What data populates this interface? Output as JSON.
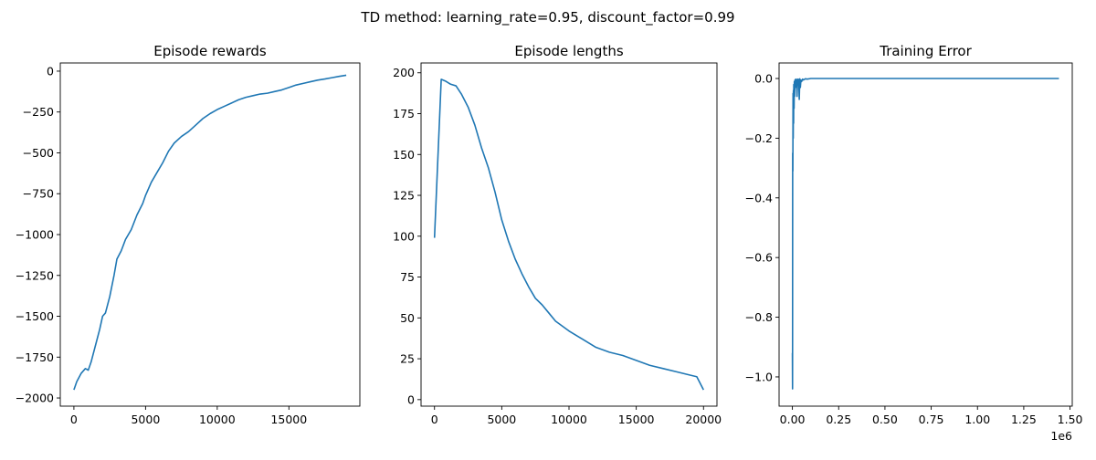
{
  "figure": {
    "suptitle": "TD method: learning_rate=0.95, discount_factor=0.99",
    "line_color": "#1f77b4"
  },
  "chart_data": [
    {
      "type": "line",
      "title": "Episode rewards",
      "xlabel": "",
      "ylabel": "",
      "xlim": [
        -950,
        19950
      ],
      "ylim": [
        -2050,
        50
      ],
      "xticks": [
        0,
        5000,
        10000,
        15000
      ],
      "yticks": [
        0,
        -250,
        -500,
        -750,
        -1000,
        -1250,
        -1500,
        -1750,
        -2000
      ],
      "grid": false,
      "series": [
        {
          "x": [
            0,
            200,
            500,
            800,
            1000,
            1200,
            1500,
            1800,
            2000,
            2200,
            2500,
            2800,
            3000,
            3300,
            3600,
            4000,
            4400,
            4800,
            5000,
            5400,
            5800,
            6200,
            6600,
            7000,
            7500,
            8000,
            8500,
            9000,
            9500,
            10000,
            10500,
            11000,
            11500,
            12000,
            12500,
            13000,
            13500,
            14000,
            14500,
            15000,
            15500,
            16000,
            16500,
            17000,
            17500,
            18000,
            18500,
            19000
          ],
          "y": [
            -1950,
            -1900,
            -1850,
            -1820,
            -1830,
            -1780,
            -1680,
            -1580,
            -1500,
            -1480,
            -1380,
            -1250,
            -1150,
            -1100,
            -1030,
            -970,
            -880,
            -810,
            -760,
            -680,
            -620,
            -560,
            -490,
            -440,
            -400,
            -370,
            -330,
            -290,
            -260,
            -235,
            -215,
            -195,
            -175,
            -160,
            -150,
            -140,
            -135,
            -125,
            -115,
            -100,
            -85,
            -75,
            -65,
            -55,
            -48,
            -40,
            -32,
            -25
          ]
        }
      ]
    },
    {
      "type": "line",
      "title": "Episode lengths",
      "xlabel": "",
      "ylabel": "",
      "xlim": [
        -1000,
        21000
      ],
      "ylim": [
        -4,
        206
      ],
      "xticks": [
        0,
        5000,
        10000,
        15000,
        20000
      ],
      "yticks": [
        0,
        25,
        50,
        75,
        100,
        125,
        150,
        175,
        200
      ],
      "grid": false,
      "series": [
        {
          "x": [
            0,
            500,
            800,
            1200,
            1600,
            2000,
            2500,
            3000,
            3500,
            4000,
            4500,
            5000,
            5500,
            6000,
            6500,
            7000,
            7500,
            8000,
            8500,
            9000,
            9500,
            10000,
            11000,
            12000,
            13000,
            14000,
            15000,
            16000,
            17000,
            18000,
            19000,
            19500,
            20000
          ],
          "y": [
            99,
            196,
            195,
            193,
            192,
            187,
            179,
            168,
            154,
            142,
            127,
            110,
            97,
            86,
            77,
            69,
            62,
            58,
            53,
            48,
            45,
            42,
            37,
            32,
            29,
            27,
            24,
            21,
            19,
            17,
            15,
            14,
            6
          ]
        }
      ]
    },
    {
      "type": "line",
      "title": "Training Error",
      "xlabel": "",
      "ylabel": "",
      "xlim": [
        -72000,
        1512000
      ],
      "ylim": [
        -1.098,
        0.052
      ],
      "xticks": [
        0,
        250000,
        500000,
        750000,
        1000000,
        1250000,
        1500000
      ],
      "xtick_labels": [
        "0.00",
        "0.25",
        "0.50",
        "0.75",
        "1.00",
        "1.25",
        "1.50"
      ],
      "x_offset_text": "1e6",
      "yticks": [
        0.0,
        -0.2,
        -0.4,
        -0.6,
        -0.8,
        -1.0
      ],
      "ytick_labels": [
        "0.0",
        "−0.2",
        "−0.4",
        "−0.6",
        "−0.8",
        "−1.0"
      ],
      "grid": false,
      "series": [
        {
          "x": [
            0,
            800,
            1500,
            2500,
            3500,
            4500,
            5500,
            6500,
            7500,
            9000,
            10500,
            12000,
            14000,
            16000,
            18000,
            20000,
            22000,
            25000,
            28000,
            31000,
            34000,
            37000,
            40000,
            43000,
            46000,
            50000,
            55000,
            60000,
            70000,
            80000,
            100000,
            150000,
            300000,
            600000,
            900000,
            1200000,
            1440000
          ],
          "y": [
            -0.92,
            -1.04,
            -0.25,
            -0.31,
            -0.05,
            -0.2,
            -0.04,
            -0.15,
            -0.02,
            -0.1,
            -0.01,
            -0.06,
            -0.005,
            -0.03,
            -0.002,
            -0.02,
            -0.004,
            -0.06,
            -0.002,
            -0.015,
            -0.003,
            -0.07,
            -0.001,
            -0.03,
            -0.005,
            -0.01,
            -0.002,
            -0.005,
            -0.001,
            -0.002,
            0,
            0,
            0,
            0,
            0,
            0,
            0
          ]
        }
      ]
    }
  ]
}
